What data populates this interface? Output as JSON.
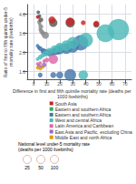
{
  "chart_data": {
    "type": "scatter",
    "xlabel": "Difference in first and fifth quintile mortality rate (deaths per 1000 livebirths)",
    "ylabel": "Ratio of first to fifth quintile under-5 mortality rate (livebirths)",
    "x": [
      3.5,
      4.0,
      4.5,
      5.5,
      5.0,
      6.0,
      7.0,
      9.0,
      3.5,
      4.5,
      5.5,
      15.0,
      28.0,
      48.0,
      3.0,
      4.0,
      5.0,
      7.0,
      8.0,
      10.0,
      12.0,
      14.0,
      16.0,
      18.0,
      20.0,
      25.0,
      30.0,
      36.0,
      65.0,
      55.0,
      40.0,
      30.0,
      25.0,
      20.0,
      16.0,
      12.0,
      9.0,
      7.0,
      5.0,
      3.0,
      8.0,
      10.0,
      15.0,
      5.0,
      3.0,
      4.0,
      6.0,
      8.0,
      3.0,
      5.0,
      7.0,
      3.0,
      14.0,
      28.0,
      38.0,
      48.0,
      5.0,
      15.0,
      20.0,
      28.0,
      38.0
    ],
    "y": [
      3.85,
      3.6,
      3.5,
      3.35,
      3.2,
      3.1,
      3.0,
      2.9,
      4.1,
      3.9,
      3.7,
      3.55,
      3.55,
      3.45,
      2.35,
      2.25,
      2.2,
      2.1,
      2.05,
      2.0,
      1.95,
      2.0,
      2.05,
      2.1,
      2.15,
      2.2,
      2.3,
      2.5,
      3.2,
      3.0,
      2.65,
      2.5,
      2.35,
      2.25,
      2.15,
      2.05,
      1.95,
      1.85,
      1.75,
      1.65,
      1.55,
      1.6,
      1.65,
      1.45,
      1.4,
      1.3,
      1.25,
      1.35,
      1.2,
      1.15,
      1.25,
      3.85,
      3.7,
      3.6,
      3.55,
      3.5,
      0.82,
      0.82,
      0.82,
      0.82,
      0.82
    ],
    "sizes": [
      3,
      3,
      3,
      4,
      3,
      4,
      4,
      6,
      3,
      3,
      4,
      7,
      8,
      5,
      3,
      3,
      4,
      4,
      5,
      5,
      5,
      6,
      6,
      7,
      8,
      9,
      10,
      13,
      18,
      15,
      12,
      10,
      9,
      8,
      7,
      6,
      5,
      4,
      4,
      3,
      3,
      4,
      8,
      3,
      3,
      3,
      3,
      4,
      3,
      3,
      3,
      3,
      6,
      7,
      4,
      5,
      4,
      5,
      6,
      10,
      8
    ],
    "colors": [
      "#888888",
      "#888888",
      "#888888",
      "#888888",
      "#888888",
      "#888888",
      "#888888",
      "#888888",
      "#555555",
      "#555555",
      "#555555",
      "#555555",
      "#555555",
      "#555555",
      "#4477aa",
      "#4477aa",
      "#4477aa",
      "#4477aa",
      "#4477aa",
      "#4477aa",
      "#4477aa",
      "#4477aa",
      "#4477aa",
      "#4477aa",
      "#4477aa",
      "#4477aa",
      "#4477aa",
      "#4477aa",
      "#4db8b8",
      "#4db8b8",
      "#4db8b8",
      "#4db8b8",
      "#4db8b8",
      "#4db8b8",
      "#4db8b8",
      "#4db8b8",
      "#4db8b8",
      "#4db8b8",
      "#4db8b8",
      "#4db8b8",
      "#dd66aa",
      "#dd66aa",
      "#dd66aa",
      "#dd66aa",
      "#dd66aa",
      "#9966cc",
      "#9966cc",
      "#9966cc",
      "#dd9900",
      "#dd9900",
      "#dd9900",
      "#cc2222",
      "#cc2222",
      "#cc2222",
      "#cc2222",
      "#cc2222",
      "#4477aa",
      "#4477aa",
      "#4477aa",
      "#4477aa",
      "#4db8b8"
    ],
    "xlim": [
      -5,
      75
    ],
    "ylim": [
      0.6,
      4.5
    ],
    "xticks": [
      0,
      10,
      20,
      30,
      40,
      50,
      60,
      70
    ],
    "yticks": [
      {
        "value": 1.0,
        "label": "1.0"
      },
      {
        "value": 2.0,
        "label": "2.0"
      },
      {
        "value": 3.0,
        "label": "3.0"
      },
      {
        "value": 4.0,
        "label": "4.0"
      }
    ],
    "grid": true,
    "legend": "lower right",
    "legend_entries": [
      {
        "name": "South Asia",
        "color": "#cc2222"
      },
      {
        "name": "Eastern and southern Africa",
        "color": "#33aa55"
      },
      {
        "name": "Eastern and southern Africa",
        "color": "#4477aa"
      },
      {
        "name": "West and central Africa",
        "color": "#4db8b8"
      },
      {
        "name": "Latin America and Caribbean",
        "color": "#dd66aa"
      },
      {
        "name": "East Asia and Pacific, excluding China",
        "color": "#9966cc"
      },
      {
        "name": "Middle East and north Africa",
        "color": "#dd9900"
      }
    ],
    "size_legend": {
      "title": "National level under-5 mortality rate\n(deaths per 1000 livebirths)",
      "values": [
        25,
        50,
        100
      ]
    }
  }
}
